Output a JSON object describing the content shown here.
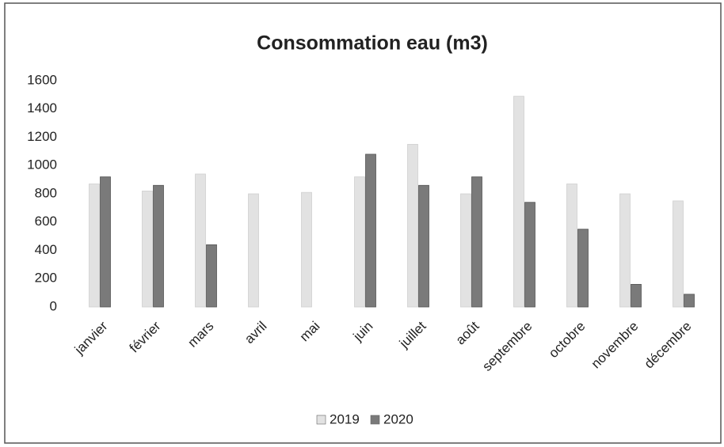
{
  "chart_data": {
    "type": "bar",
    "title": "Consommation eau (m3)",
    "categories": [
      "janvier",
      "février",
      "mars",
      "avril",
      "mai",
      "juin",
      "juillet",
      "août",
      "septembre",
      "octobre",
      "novembre",
      "décembre"
    ],
    "series": [
      {
        "name": "2019",
        "color": "#e2e2e2",
        "values": [
          870,
          820,
          940,
          800,
          810,
          920,
          1150,
          800,
          1490,
          870,
          800,
          750
        ]
      },
      {
        "name": "2020",
        "color": "#7a7a7a",
        "values": [
          920,
          860,
          440,
          null,
          null,
          1080,
          860,
          920,
          740,
          550,
          160,
          90
        ]
      }
    ],
    "ylim": [
      0,
      1600
    ],
    "yticks": [
      0,
      200,
      400,
      600,
      800,
      1000,
      1200,
      1400,
      1600
    ],
    "grid": false,
    "legend": "bottom"
  }
}
